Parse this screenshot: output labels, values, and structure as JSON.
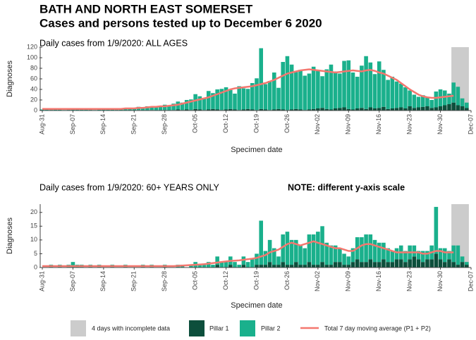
{
  "header": {
    "title": "BATH AND NORTH EAST SOMERSET",
    "subtitle": "Cases and persons tested up to December  6 2020"
  },
  "legend": {
    "incomplete_label": "4 days with incomplete data",
    "incomplete_days": 4,
    "incomplete_color": "#cccccc"
  },
  "chart_data": [
    {
      "type": "bar",
      "stacked": true,
      "title": "Daily cases from 1/9/2020: ALL AGES",
      "xlabel": "Specimen date",
      "ylabel": "Diagnoses",
      "ylim": [
        0,
        120
      ],
      "yticks": [
        0,
        20,
        40,
        60,
        80,
        100,
        120
      ],
      "categories": [
        "Aug-31",
        null,
        null,
        null,
        null,
        null,
        null,
        "Sep-07",
        null,
        null,
        null,
        null,
        null,
        null,
        "Sep-14",
        null,
        null,
        null,
        null,
        null,
        null,
        "Sep-21",
        null,
        null,
        null,
        null,
        null,
        null,
        "Sep-28",
        null,
        null,
        null,
        null,
        null,
        null,
        "Oct-05",
        null,
        null,
        null,
        null,
        null,
        null,
        "Oct-12",
        null,
        null,
        null,
        null,
        null,
        null,
        "Oct-19",
        null,
        null,
        null,
        null,
        null,
        null,
        "Oct-26",
        null,
        null,
        null,
        null,
        null,
        null,
        "Nov-02",
        null,
        null,
        null,
        null,
        null,
        null,
        "Nov-09",
        null,
        null,
        null,
        null,
        null,
        null,
        "Nov-16",
        null,
        null,
        null,
        null,
        null,
        null,
        "Nov-23",
        null,
        null,
        null,
        null,
        null,
        null,
        "Nov-30",
        null,
        null,
        null,
        null,
        null,
        null,
        "Dec-07"
      ],
      "series": [
        {
          "name": "Pillar 1",
          "color": "#0d4f3c",
          "values": [
            0,
            0,
            1,
            0,
            0,
            0,
            1,
            0,
            0,
            0,
            0,
            1,
            0,
            0,
            0,
            0,
            0,
            1,
            0,
            0,
            0,
            0,
            1,
            0,
            0,
            1,
            0,
            0,
            1,
            0,
            1,
            2,
            1,
            2,
            1,
            3,
            2,
            1,
            2,
            3,
            2,
            1,
            2,
            3,
            2,
            1,
            2,
            3,
            2,
            1,
            3,
            2,
            1,
            2,
            3,
            2,
            1,
            2,
            3,
            2,
            1,
            2,
            3,
            4,
            5,
            3,
            2,
            4,
            5,
            6,
            3,
            2,
            4,
            5,
            3,
            6,
            4,
            5,
            7,
            3,
            4,
            5,
            6,
            4,
            8,
            5,
            6,
            7,
            8,
            5,
            6,
            8,
            10,
            12,
            15,
            10,
            8,
            5,
            null
          ]
        },
        {
          "name": "Pillar 2",
          "color": "#1ab08c",
          "values": [
            2,
            3,
            2,
            4,
            3,
            1,
            2,
            3,
            4,
            2,
            3,
            2,
            1,
            3,
            2,
            4,
            3,
            2,
            3,
            5,
            4,
            3,
            6,
            5,
            8,
            7,
            6,
            9,
            10,
            8,
            12,
            15,
            14,
            18,
            20,
            28,
            25,
            22,
            35,
            30,
            38,
            40,
            42,
            36,
            30,
            45,
            40,
            38,
            50,
            60,
            115,
            48,
            55,
            70,
            40,
            90,
            102,
            85,
            70,
            75,
            65,
            68,
            80,
            72,
            60,
            75,
            85,
            70,
            65,
            88,
            92,
            70,
            60,
            80,
            100,
            85,
            65,
            88,
            70,
            55,
            60,
            50,
            45,
            40,
            30,
            25,
            20,
            22,
            18,
            15,
            30,
            32,
            28,
            20,
            38,
            35,
            15,
            10,
            null
          ]
        },
        {
          "name": "Total 7 day moving average (P1 + P2)",
          "type": "line",
          "color": "#f4776f",
          "values": [
            3,
            3,
            3,
            3,
            3,
            3,
            3,
            3,
            3,
            3,
            3,
            3,
            3,
            3,
            3,
            3,
            3,
            3,
            3,
            4,
            4,
            4,
            5,
            5,
            6,
            7,
            7,
            8,
            8,
            9,
            10,
            11,
            13,
            15,
            17,
            19,
            21,
            23,
            25,
            28,
            31,
            34,
            37,
            40,
            42,
            43,
            44,
            45,
            46,
            48,
            50,
            52,
            55,
            58,
            62,
            66,
            70,
            72,
            74,
            76,
            77,
            78,
            77,
            76,
            75,
            74,
            73,
            72,
            73,
            74,
            75,
            76,
            75,
            74,
            76,
            77,
            75,
            72,
            70,
            66,
            62,
            58,
            52,
            46,
            40,
            35,
            30,
            27,
            25,
            24,
            24,
            25,
            26,
            27,
            28,
            null,
            null,
            null,
            null
          ]
        }
      ]
    },
    {
      "type": "bar",
      "stacked": true,
      "title": "Daily cases from 1/9/2020: 60+ YEARS ONLY",
      "note": "NOTE: different y-axis scale",
      "xlabel": "Specimen date",
      "ylabel": "Diagnoses",
      "ylim": [
        0,
        23
      ],
      "yticks": [
        0,
        5,
        10,
        15,
        20
      ],
      "categories": [
        "Aug-31",
        null,
        null,
        null,
        null,
        null,
        null,
        "Sep-07",
        null,
        null,
        null,
        null,
        null,
        null,
        "Sep-14",
        null,
        null,
        null,
        null,
        null,
        null,
        "Sep-21",
        null,
        null,
        null,
        null,
        null,
        null,
        "Sep-28",
        null,
        null,
        null,
        null,
        null,
        null,
        "Oct-05",
        null,
        null,
        null,
        null,
        null,
        null,
        "Oct-12",
        null,
        null,
        null,
        null,
        null,
        null,
        "Oct-19",
        null,
        null,
        null,
        null,
        null,
        null,
        "Oct-26",
        null,
        null,
        null,
        null,
        null,
        null,
        "Nov-02",
        null,
        null,
        null,
        null,
        null,
        null,
        "Nov-09",
        null,
        null,
        null,
        null,
        null,
        null,
        "Nov-16",
        null,
        null,
        null,
        null,
        null,
        null,
        "Nov-23",
        null,
        null,
        null,
        null,
        null,
        null,
        "Nov-30",
        null,
        null,
        null,
        null,
        null,
        null,
        "Dec-07"
      ],
      "series": [
        {
          "name": "Pillar 1",
          "color": "#0d4f3c",
          "values": [
            0,
            0,
            0,
            0,
            0,
            0,
            0,
            0,
            0,
            0,
            0,
            0,
            0,
            0,
            0,
            0,
            0,
            0,
            0,
            0,
            0,
            0,
            0,
            0,
            0,
            0,
            0,
            0,
            0,
            0,
            0,
            0,
            0,
            0,
            0,
            0,
            0,
            0,
            0,
            0,
            1,
            0,
            0,
            1,
            0,
            0,
            1,
            0,
            0,
            1,
            1,
            1,
            2,
            1,
            1,
            2,
            1,
            1,
            2,
            1,
            1,
            2,
            1,
            1,
            2,
            1,
            1,
            2,
            2,
            1,
            1,
            2,
            3,
            2,
            2,
            3,
            2,
            2,
            3,
            2,
            2,
            3,
            3,
            2,
            3,
            4,
            3,
            2,
            3,
            3,
            5,
            3,
            2,
            3,
            2,
            1,
            2,
            1,
            null
          ]
        },
        {
          "name": "Pillar 2",
          "color": "#1ab08c",
          "values": [
            0,
            0,
            1,
            0,
            1,
            0,
            1,
            2,
            1,
            1,
            0,
            1,
            0,
            1,
            0,
            0,
            1,
            0,
            0,
            1,
            0,
            0,
            0,
            1,
            0,
            1,
            0,
            0,
            1,
            0,
            0,
            1,
            1,
            0,
            1,
            2,
            1,
            1,
            2,
            1,
            3,
            2,
            2,
            3,
            2,
            1,
            3,
            2,
            3,
            4,
            16,
            5,
            8,
            6,
            3,
            10,
            12,
            9,
            8,
            7,
            6,
            10,
            11,
            12,
            13,
            8,
            7,
            6,
            5,
            4,
            3,
            5,
            8,
            9,
            10,
            9,
            8,
            7,
            6,
            5,
            4,
            4,
            5,
            4,
            5,
            4,
            3,
            4,
            3,
            5,
            17,
            4,
            5,
            3,
            6,
            7,
            2,
            1,
            null
          ]
        },
        {
          "name": "Total 7 day moving average (P1 + P2)",
          "type": "line",
          "color": "#f4776f",
          "values": [
            0.5,
            0.5,
            0.5,
            0.5,
            0.5,
            0.5,
            0.5,
            0.5,
            0.5,
            0.5,
            0.5,
            0.5,
            0.5,
            0.5,
            0.5,
            0.5,
            0.5,
            0.5,
            0.5,
            0.5,
            0.5,
            0.5,
            0.5,
            0.5,
            0.5,
            0.5,
            0.5,
            0.5,
            0.5,
            0.5,
            0.5,
            0.6,
            0.7,
            0.8,
            0.9,
            1,
            1.1,
            1.2,
            1.4,
            1.6,
            1.8,
            2,
            2.2,
            2.4,
            2.5,
            2.6,
            2.8,
            3,
            3.2,
            3.5,
            4,
            4.5,
            5.5,
            6,
            6.5,
            7.5,
            8.5,
            9,
            8.5,
            8,
            8.5,
            9,
            9.5,
            9,
            8.5,
            8,
            7.5,
            7,
            7,
            6.5,
            6,
            6,
            7,
            8,
            8.5,
            8.5,
            8,
            7.5,
            7,
            6.5,
            6,
            5.5,
            5.5,
            5.5,
            5.5,
            5.5,
            5.5,
            5,
            5,
            5.5,
            6,
            6,
            5.5,
            5.5,
            5.5,
            null,
            null,
            null,
            null
          ]
        }
      ]
    }
  ]
}
